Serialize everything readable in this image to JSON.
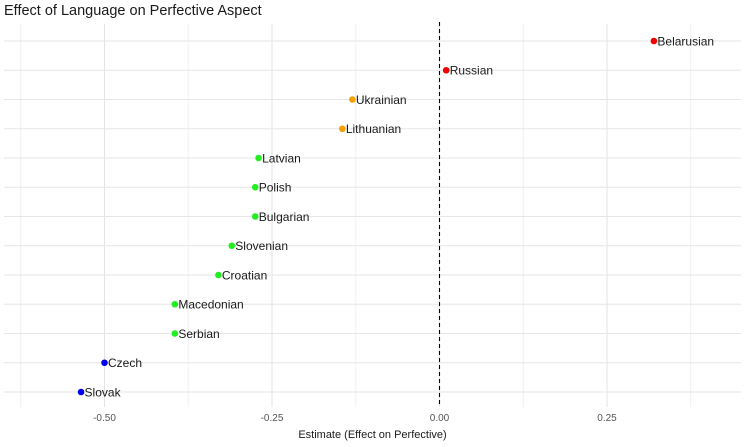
{
  "chart_data": {
    "type": "scatter",
    "title": "Effect of Language on Perfective Aspect",
    "xlabel": "Estimate (Effect on Perfective)",
    "ylabel": "",
    "xlim": [
      -0.65,
      0.45
    ],
    "x_ticks": [
      -0.5,
      -0.25,
      0.0,
      0.25
    ],
    "x_tick_labels": [
      "-0.50",
      "-0.25",
      "0.00",
      "0.25"
    ],
    "reference_line": {
      "x": 0,
      "style": "dashed",
      "color": "#000000"
    },
    "grid": true,
    "legend": "none",
    "points": [
      {
        "label": "Belarusian",
        "x": 0.32,
        "color": "#ee0000"
      },
      {
        "label": "Russian",
        "x": 0.01,
        "color": "#ee0000"
      },
      {
        "label": "Ukrainian",
        "x": -0.13,
        "color": "#f5a000"
      },
      {
        "label": "Lithuanian",
        "x": -0.145,
        "color": "#f5a000"
      },
      {
        "label": "Latvian",
        "x": -0.27,
        "color": "#22ee22"
      },
      {
        "label": "Polish",
        "x": -0.275,
        "color": "#22ee22"
      },
      {
        "label": "Bulgarian",
        "x": -0.275,
        "color": "#22ee22"
      },
      {
        "label": "Slovenian",
        "x": -0.31,
        "color": "#22ee22"
      },
      {
        "label": "Croatian",
        "x": -0.33,
        "color": "#22ee22"
      },
      {
        "label": "Macedonian",
        "x": -0.395,
        "color": "#22ee22"
      },
      {
        "label": "Serbian",
        "x": -0.395,
        "color": "#22ee22"
      },
      {
        "label": "Czech",
        "x": -0.5,
        "color": "#0000ee"
      },
      {
        "label": "Slovak",
        "x": -0.535,
        "color": "#0000ee"
      }
    ]
  }
}
